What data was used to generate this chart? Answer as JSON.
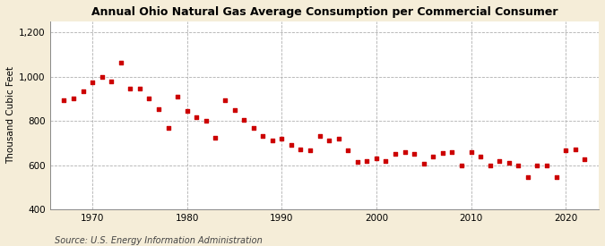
{
  "title": "Annual Ohio Natural Gas Average Consumption per Commercial Consumer",
  "ylabel": "Thousand Cubic Feet",
  "source": "Source: U.S. Energy Information Administration",
  "background_color": "#f5edd8",
  "plot_bg_color": "#ffffff",
  "marker_color": "#cc0000",
  "ylim": [
    400,
    1250
  ],
  "yticks": [
    400,
    600,
    800,
    1000,
    1200
  ],
  "ytick_labels": [
    "400",
    "600",
    "800",
    "1,000",
    "1,200"
  ],
  "xticks": [
    1970,
    1980,
    1990,
    2000,
    2010,
    2020
  ],
  "years": [
    1967,
    1968,
    1969,
    1970,
    1971,
    1972,
    1973,
    1974,
    1975,
    1976,
    1977,
    1978,
    1979,
    1980,
    1981,
    1982,
    1983,
    1984,
    1985,
    1986,
    1987,
    1988,
    1989,
    1990,
    1991,
    1992,
    1993,
    1994,
    1995,
    1996,
    1997,
    1998,
    1999,
    2000,
    2001,
    2002,
    2003,
    2004,
    2005,
    2006,
    2007,
    2008,
    2009,
    2010,
    2011,
    2012,
    2013,
    2014,
    2015,
    2016,
    2017,
    2018,
    2019,
    2020,
    2021,
    2022
  ],
  "values": [
    893,
    900,
    935,
    975,
    1000,
    980,
    1065,
    945,
    945,
    900,
    855,
    770,
    910,
    845,
    815,
    800,
    725,
    895,
    850,
    805,
    770,
    730,
    710,
    720,
    690,
    670,
    665,
    730,
    710,
    720,
    665,
    615,
    620,
    630,
    620,
    650,
    660,
    650,
    605,
    640,
    655,
    660,
    600,
    660,
    640,
    600,
    620,
    610,
    600,
    545,
    600,
    600,
    545,
    665,
    670,
    625
  ],
  "xlim": [
    1965.5,
    2023.5
  ],
  "title_fontsize": 9,
  "tick_fontsize": 7.5,
  "ylabel_fontsize": 7.5,
  "source_fontsize": 7
}
